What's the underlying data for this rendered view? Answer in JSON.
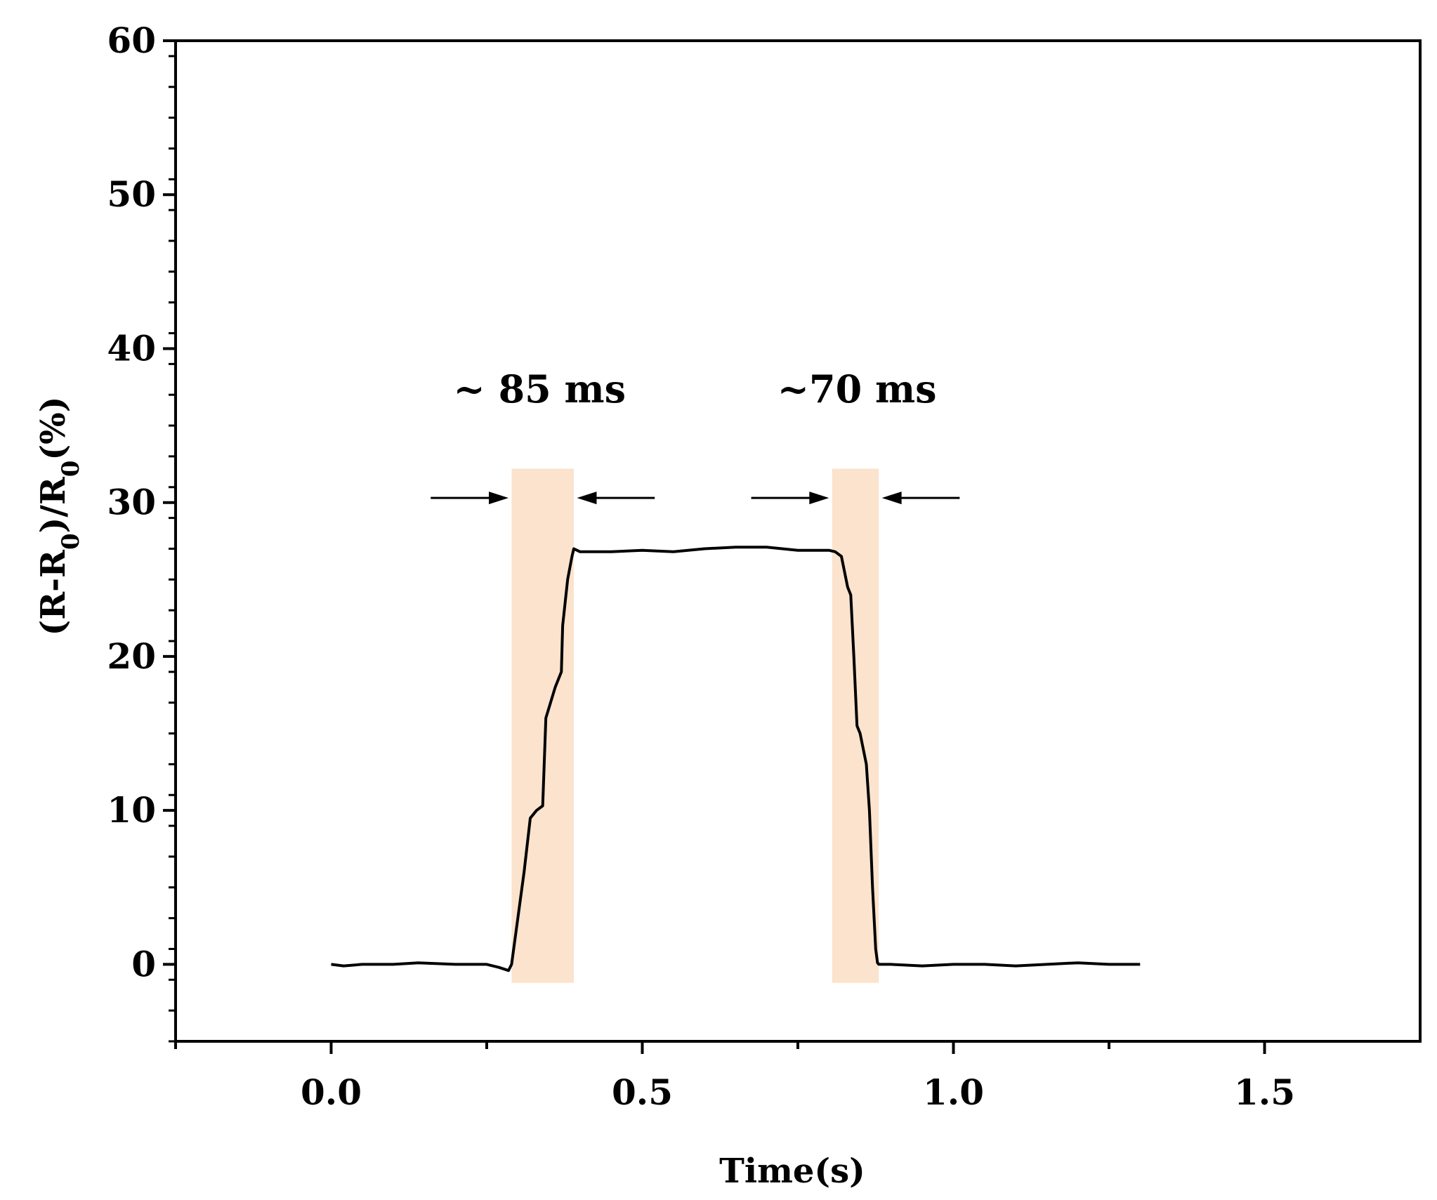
{
  "chart_data": {
    "type": "line",
    "title": "",
    "xlabel": "Time(s)",
    "ylabel": "(R-R0)/R0(%)",
    "ylabel_parts": {
      "open": "(R-R",
      "sub1": "0",
      "mid": ")/R",
      "sub2": "0",
      "close": "(%)"
    },
    "xlim": [
      -0.25,
      1.75
    ],
    "ylim": [
      -5,
      60
    ],
    "x_ticks": [
      0.0,
      0.5,
      1.0,
      1.5
    ],
    "x_tick_labels": [
      "0.0",
      "0.5",
      "1.0",
      "1.5"
    ],
    "x_minor_ticks": [
      -0.25,
      0.25,
      0.75,
      1.25
    ],
    "y_ticks": [
      0,
      10,
      20,
      30,
      40,
      50,
      60
    ],
    "y_tick_labels": [
      "0",
      "10",
      "20",
      "30",
      "40",
      "50",
      "60"
    ],
    "grid": false,
    "line_color": "#000000",
    "series": [
      {
        "x": [
          0.0,
          0.02,
          0.05,
          0.1,
          0.14,
          0.2,
          0.25,
          0.27,
          0.285,
          0.29,
          0.3,
          0.31,
          0.32,
          0.33,
          0.34,
          0.345,
          0.36,
          0.37,
          0.372,
          0.38,
          0.387,
          0.39,
          0.4,
          0.45,
          0.5,
          0.55,
          0.6,
          0.65,
          0.7,
          0.75,
          0.8,
          0.81,
          0.82,
          0.83,
          0.835,
          0.84,
          0.845,
          0.85,
          0.86,
          0.865,
          0.87,
          0.875,
          0.878,
          0.88,
          0.9,
          0.95,
          1.0,
          1.05,
          1.1,
          1.15,
          1.2,
          1.25,
          1.3
        ],
        "y": [
          0.0,
          -0.1,
          0.0,
          0.0,
          0.1,
          0.0,
          0.0,
          -0.2,
          -0.4,
          0.0,
          3.0,
          6.0,
          9.5,
          10.0,
          10.3,
          16.0,
          18.0,
          19.0,
          22.0,
          25.0,
          26.5,
          27.0,
          26.8,
          26.8,
          26.9,
          26.8,
          27.0,
          27.1,
          27.1,
          26.9,
          26.9,
          26.8,
          26.5,
          24.5,
          24.0,
          20.0,
          15.5,
          15.0,
          13.0,
          10.0,
          5.0,
          1.0,
          0.1,
          0.0,
          0.0,
          -0.1,
          0.0,
          0.0,
          -0.1,
          0.0,
          0.1,
          0.0,
          0.0
        ]
      }
    ],
    "shaded_regions": [
      {
        "x0": 0.29,
        "x1": 0.39,
        "y0": -1.2,
        "y1": 32.2,
        "color": "#fbe3cd"
      },
      {
        "x0": 0.805,
        "x1": 0.88,
        "y0": -1.2,
        "y1": 32.2,
        "color": "#fbe3cd"
      }
    ],
    "arrows": [
      {
        "from": 0.16,
        "to": 0.285,
        "y": 30.3
      },
      {
        "from": 0.52,
        "to": 0.395,
        "y": 30.3
      },
      {
        "from": 0.675,
        "to": 0.8,
        "y": 30.3
      },
      {
        "from": 1.01,
        "to": 0.885,
        "y": 30.3
      }
    ],
    "annotations": [
      {
        "text": "~ 85 ms",
        "x": 0.335,
        "y": 36.5
      },
      {
        "text": "~70 ms",
        "x": 0.845,
        "y": 36.5
      }
    ]
  }
}
